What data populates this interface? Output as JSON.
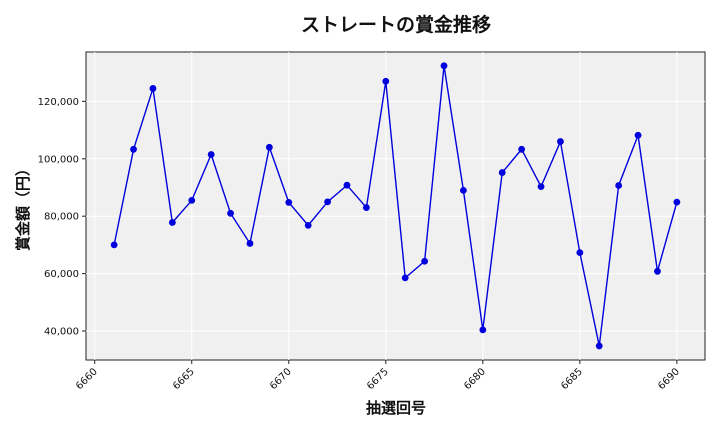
{
  "chart_data": {
    "type": "line",
    "title": "ストレートの賞金推移",
    "xlabel": "抽選回号",
    "ylabel": "賞金額（円）",
    "x": [
      6661,
      6662,
      6663,
      6664,
      6665,
      6666,
      6667,
      6668,
      6669,
      6670,
      6671,
      6672,
      6673,
      6674,
      6675,
      6676,
      6677,
      6678,
      6679,
      6680,
      6681,
      6682,
      6683,
      6684,
      6685,
      6686,
      6687,
      6688,
      6689,
      6690
    ],
    "series": [
      {
        "values": [
          70000,
          103300,
          124500,
          77800,
          85500,
          101500,
          81000,
          70500,
          104000,
          84800,
          76800,
          85000,
          90800,
          83000,
          127000,
          58500,
          64300,
          132400,
          89000,
          40400,
          95200,
          103300,
          90300,
          106000,
          67300,
          34800,
          90700,
          108200,
          60800,
          84900
        ]
      }
    ],
    "xlim": [
      6659.55,
      6691.45
    ],
    "ylim": [
      29900,
      137200
    ],
    "xticks": [
      6660,
      6665,
      6670,
      6675,
      6680,
      6685,
      6690
    ],
    "xtick_labels": [
      "6660",
      "6665",
      "6670",
      "6675",
      "6680",
      "6685",
      "6690"
    ],
    "yticks": [
      40000,
      60000,
      80000,
      100000,
      120000
    ],
    "ytick_labels": [
      "40,000",
      "60,000",
      "80,000",
      "100,000",
      "120,000"
    ],
    "grid": true,
    "colors": {
      "line": "#0000dd",
      "marker": "#0000dd",
      "plot_bg": "#f0f0f0",
      "grid": "#ffffff"
    }
  }
}
